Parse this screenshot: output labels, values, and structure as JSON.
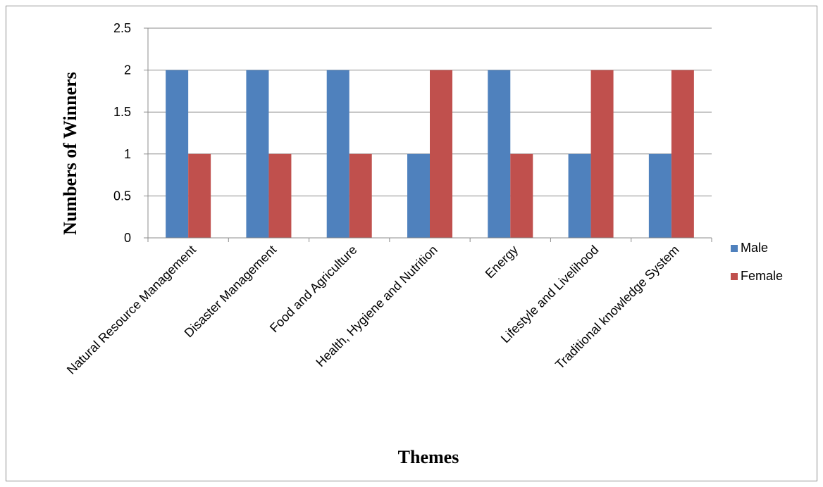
{
  "chart_data": {
    "type": "bar",
    "title": "",
    "xlabel": "Themes",
    "ylabel": "Numbers of Winners",
    "categories": [
      "Natural Resource Management",
      "Disaster Management",
      "Food and Agriculture",
      "Health, Hygiene and Nutrition",
      "Energy",
      "Lifestyle and Livelihood",
      "Traditional knowledge System"
    ],
    "series": [
      {
        "name": "Male",
        "color": "#4f81bd",
        "values": [
          2,
          2,
          2,
          1,
          2,
          1,
          1
        ]
      },
      {
        "name": "Female",
        "color": "#c0504d",
        "values": [
          1,
          1,
          1,
          2,
          1,
          2,
          2
        ]
      }
    ],
    "ylim": [
      0,
      2.5
    ],
    "yticks": [
      "0",
      "0.5",
      "1",
      "1.5",
      "2",
      "2.5"
    ],
    "grid": true,
    "legend_position": "right"
  }
}
